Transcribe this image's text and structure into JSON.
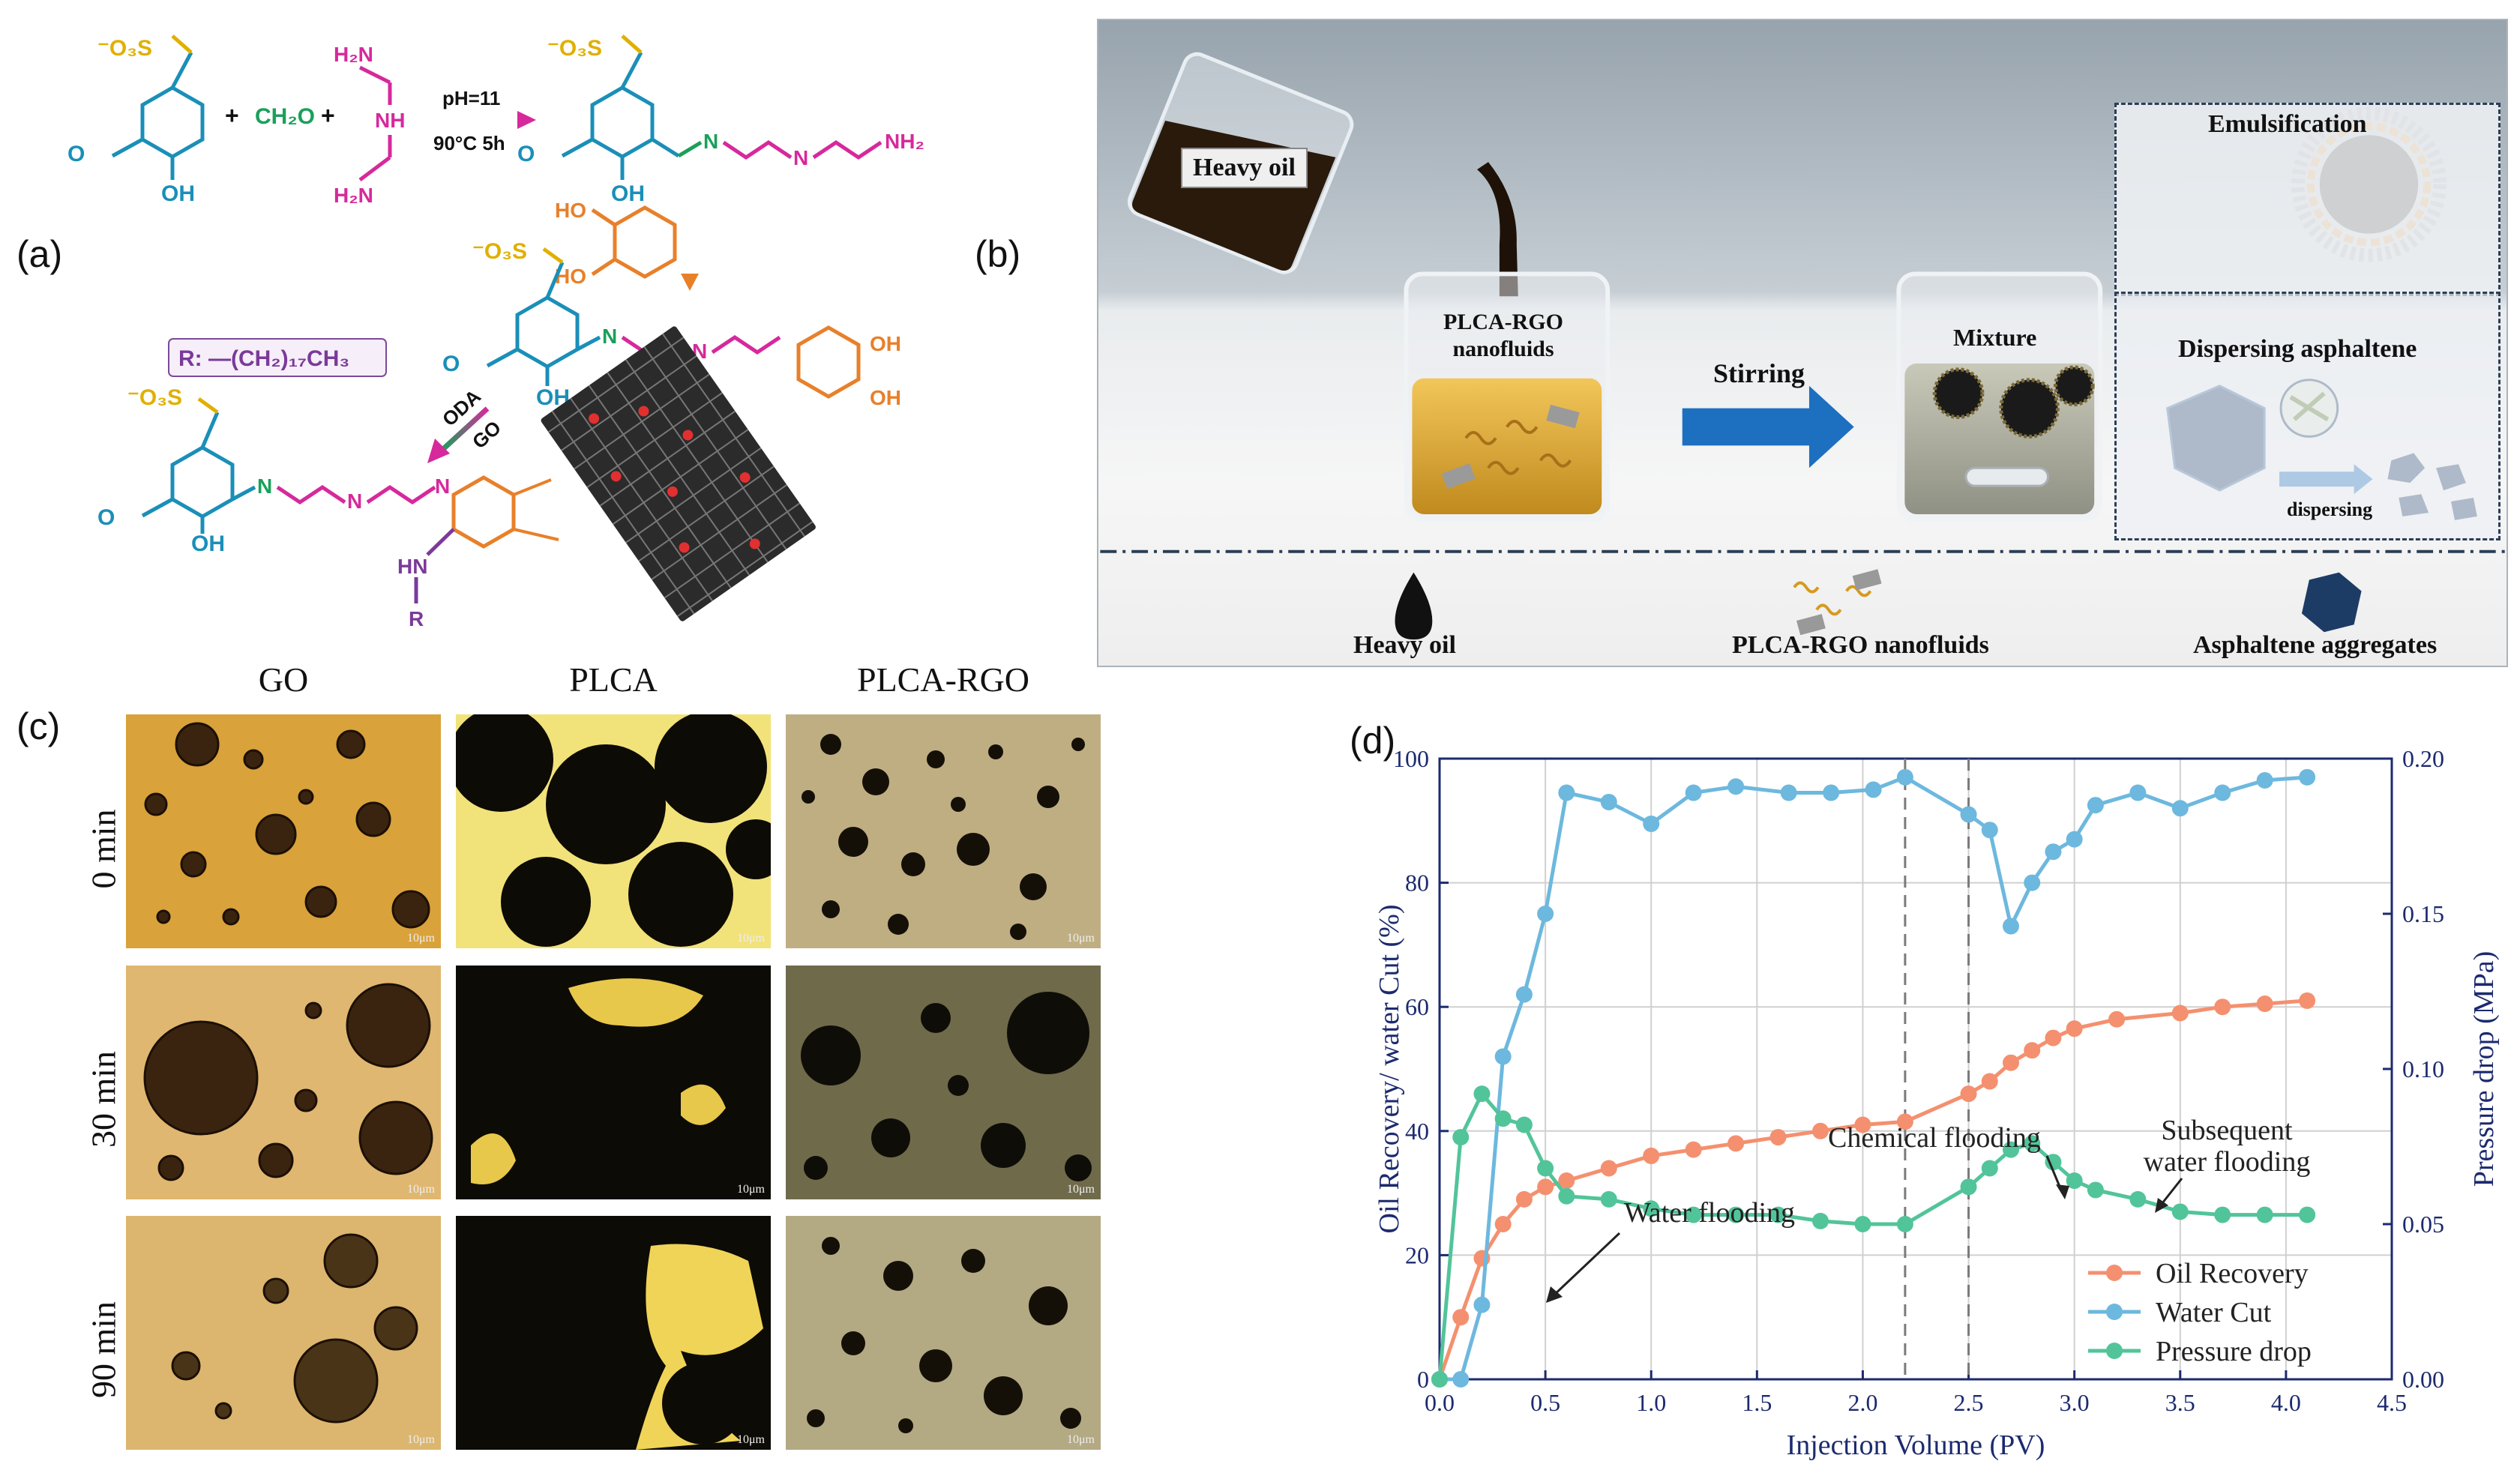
{
  "panel_a": {
    "label": "(a)",
    "ph_condition": "pH=11",
    "temp_condition": "90°C 5h",
    "reagent_formaldehyde": "CH₂O",
    "plus": "+",
    "r_group": "R:  —(CH₂)₁₇CH₃",
    "oda_label": "ODA",
    "go_label": "GO",
    "r_label": "R",
    "sulfonate": "⁻O₃S",
    "atoms": {
      "oh": "OH",
      "nh": "N",
      "h": "H",
      "nh2": "NH₂",
      "h2n": "H₂N",
      "ho": "HO",
      "hn": "HN",
      "h2": "H₂"
    }
  },
  "panel_b": {
    "label": "(b)",
    "heavy_oil_tag": "Heavy oil",
    "nanofluid_label": "PLCA-RGO nanofluids",
    "stirring_label": "Stirring",
    "mixture_label": "Mixture",
    "emulsification_label": "Emulsification",
    "dispersing_label": "Dispersing asphaltene",
    "dispersing_arrow_label": "dispersing",
    "legend": [
      "Heavy oil",
      "PLCA-RGO nanofluids",
      "Asphaltene aggregates"
    ]
  },
  "panel_c": {
    "label": "(c)",
    "columns": [
      "GO",
      "PLCA",
      "PLCA-RGO"
    ],
    "rows": [
      "0 min",
      "30 min",
      "90 min"
    ],
    "scale_bar": "10μm"
  },
  "chart_data": {
    "type": "line",
    "panel_label": "(d)",
    "xlabel": "Injection Volume (PV)",
    "ylabel_left": "Oil Recovery/ water Cut (%)",
    "ylabel_right": "Pressure drop (MPa)",
    "xlim": [
      0,
      4.5
    ],
    "ylim_left": [
      0,
      100
    ],
    "ylim_right": [
      0,
      0.2
    ],
    "x_ticks": [
      "0.0",
      "0.5",
      "1.0",
      "1.5",
      "2.0",
      "2.5",
      "3.0",
      "3.5",
      "4.0",
      "4.5"
    ],
    "y_ticks_left": [
      "0",
      "20",
      "40",
      "60",
      "80",
      "100"
    ],
    "y_ticks_right": [
      "0.00",
      "0.05",
      "0.10",
      "0.15",
      "0.20"
    ],
    "grid": true,
    "legend_position": "bottom-right",
    "vlines": [
      2.2,
      2.5
    ],
    "annotations": [
      {
        "text": "Water flooding",
        "x": 0.33,
        "y": 41
      },
      {
        "text": "Chemical flooding",
        "x": 2.49,
        "y": 62
      },
      {
        "text": "Subsequent",
        "x": 3.57,
        "y": 61
      },
      {
        "text": "water flooding",
        "x": 3.57,
        "y": 61
      }
    ],
    "series": [
      {
        "name": "Oil Recovery",
        "color": "#f4906f",
        "axis": "left",
        "x": [
          0.0,
          0.1,
          0.2,
          0.3,
          0.4,
          0.5,
          0.6,
          0.8,
          1.0,
          1.2,
          1.4,
          1.6,
          1.8,
          2.0,
          2.2,
          2.5,
          2.6,
          2.7,
          2.8,
          2.9,
          3.0,
          3.2,
          3.5,
          3.7,
          3.9,
          4.1
        ],
        "y": [
          0,
          10,
          19.5,
          25,
          29,
          31,
          32,
          34,
          36,
          37,
          38,
          39,
          40,
          41,
          41.5,
          46,
          48,
          51,
          53,
          55,
          56.5,
          58,
          59,
          60,
          60.5,
          61
        ]
      },
      {
        "name": "Water Cut",
        "color": "#6db8de",
        "axis": "left",
        "x": [
          0.0,
          0.1,
          0.2,
          0.3,
          0.4,
          0.5,
          0.6,
          0.8,
          1.0,
          1.2,
          1.4,
          1.65,
          1.85,
          2.05,
          2.2,
          2.5,
          2.6,
          2.7,
          2.8,
          2.9,
          3.0,
          3.1,
          3.3,
          3.5,
          3.7,
          3.9,
          4.1
        ],
        "y": [
          0,
          0,
          12,
          52,
          62,
          75,
          94.5,
          93,
          89.5,
          94.5,
          95.5,
          94.5,
          94.5,
          95,
          97,
          91,
          88.5,
          73,
          80,
          85,
          87,
          92.5,
          94.5,
          92,
          94.5,
          96.5,
          97
        ]
      },
      {
        "name": "Pressure drop",
        "color": "#52c49a",
        "axis": "right",
        "x": [
          0.0,
          0.1,
          0.2,
          0.3,
          0.4,
          0.5,
          0.6,
          0.8,
          1.0,
          1.2,
          1.4,
          1.6,
          1.8,
          2.0,
          2.2,
          2.5,
          2.6,
          2.7,
          2.8,
          2.9,
          3.0,
          3.1,
          3.3,
          3.5,
          3.7,
          3.9,
          4.1
        ],
        "y": [
          0.0,
          0.078,
          0.092,
          0.084,
          0.082,
          0.068,
          0.059,
          0.058,
          0.055,
          0.053,
          0.053,
          0.053,
          0.051,
          0.05,
          0.05,
          0.062,
          0.068,
          0.074,
          0.076,
          0.07,
          0.064,
          0.061,
          0.058,
          0.054,
          0.053,
          0.053,
          0.053
        ]
      }
    ]
  }
}
